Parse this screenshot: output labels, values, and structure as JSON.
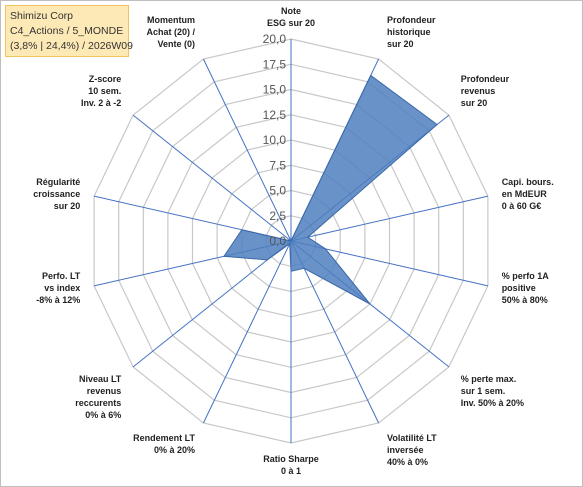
{
  "title_box": {
    "line1": "Shimizu Corp",
    "line2": "C4_Actions / 5_MONDE",
    "line3": "(3,8% | 24,4%) / 2026W09",
    "background": "#fde9b6"
  },
  "chart_data": {
    "type": "radar",
    "rlim": [
      0,
      20
    ],
    "r_ticks": [
      "0,0",
      "2,5",
      "5,0",
      "7,5",
      "10,0",
      "12,5",
      "15,0",
      "17,5",
      "20,0"
    ],
    "grid": true,
    "axes": [
      {
        "label": [
          "Note",
          "ESG sur 20"
        ],
        "value": 0
      },
      {
        "label": [
          "Profondeur",
          "historique",
          "sur 20"
        ],
        "value": 18.2
      },
      {
        "label": [
          "Profondeur",
          "revenus",
          "sur 20"
        ],
        "value": 18.5
      },
      {
        "label": [
          "Capi. bours.",
          "en MdEUR",
          "0 à 60 G€"
        ],
        "value": 1.7
      },
      {
        "label": [
          "% perfo 1A",
          "positive",
          "50% à 80%"
        ],
        "value": 3.5
      },
      {
        "label": [
          "% perte max.",
          "sur 1 sem.",
          "Inv. 50% à 20%"
        ],
        "value": 10.0
      },
      {
        "label": [
          "Volatilité LT",
          "inversée",
          "40% à 0%"
        ],
        "value": 3.0
      },
      {
        "label": [
          "Ratio Sharpe",
          "0 à 1"
        ],
        "value": 3.0
      },
      {
        "label": [
          "Rendement LT",
          "0% à 20%"
        ],
        "value": 0.3
      },
      {
        "label": [
          "Niveau LT",
          "revenus",
          "reccurents",
          "0% à 6%"
        ],
        "value": 3.0
      },
      {
        "label": [
          "Perfo. LT",
          "vs index",
          "-8% à 12%"
        ],
        "value": 6.8
      },
      {
        "label": [
          "Régularité",
          "croissance",
          "sur 20"
        ],
        "value": 5.0
      },
      {
        "label": [
          "Z-score",
          "10 sem.",
          "Inv. 2 à -2"
        ],
        "value": 0
      },
      {
        "label": [
          "Momentum",
          "Achat (20) /",
          "Vente (0)"
        ],
        "value": 0
      }
    ],
    "series_color": "#4f7fbf",
    "axis_color": "#4472c4",
    "grid_color": "#c8c8c8"
  }
}
